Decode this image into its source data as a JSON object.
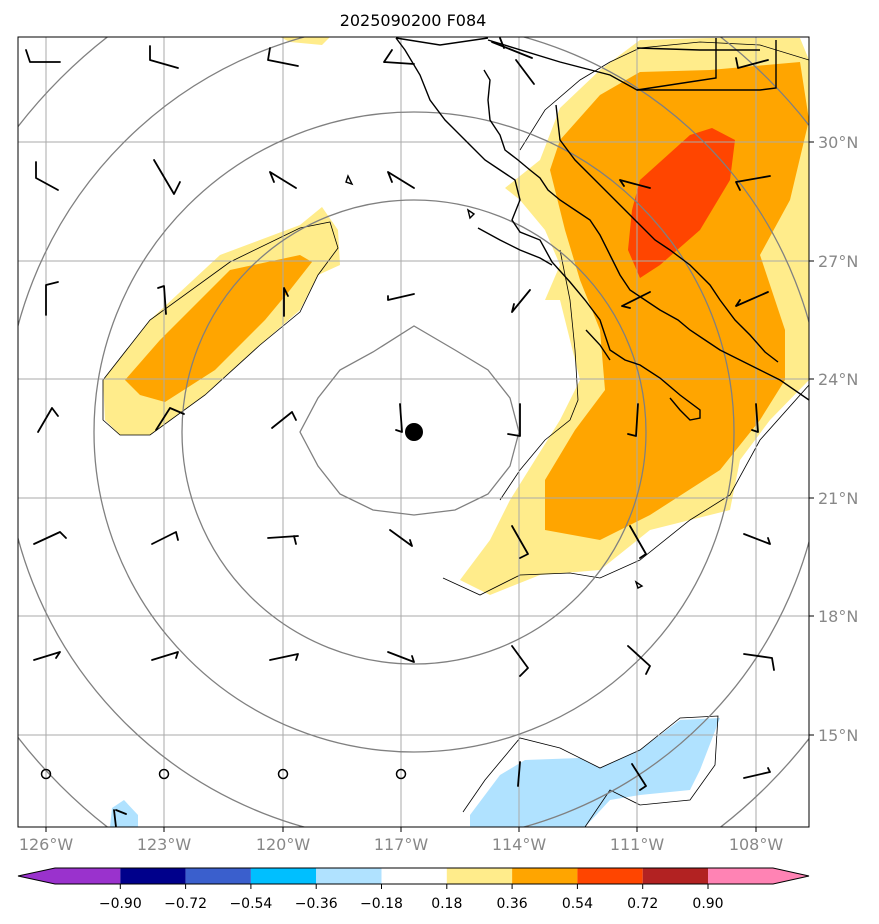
{
  "title": "2025090200 F084",
  "map": {
    "lon_ticks": [
      "126°W",
      "123°W",
      "120°W",
      "117°W",
      "114°W",
      "111°W",
      "108°W"
    ],
    "lat_ticks": [
      "30°N",
      "27°N",
      "24°N",
      "21°N",
      "18°N",
      "15°N"
    ],
    "center_marker": "storm-center-dot",
    "range_rings": 5
  },
  "colorbar": {
    "labels": [
      "−0.90",
      "−0.72",
      "−0.54",
      "−0.36",
      "−0.18",
      "0.18",
      "0.36",
      "0.54",
      "0.72",
      "0.90"
    ],
    "colors": [
      "#9a32cd",
      "#00008b",
      "#3a5fcd",
      "#00bfff",
      "#b0e2ff",
      "#ffffff",
      "#ffec8b",
      "#ffa500",
      "#ff4500",
      "#b22222",
      "#ff83b4"
    ]
  },
  "colors": {
    "light_yellow": "#ffec8b",
    "orange": "#ffa500",
    "red_orange": "#ff4500",
    "light_blue": "#b0e2ff",
    "grid": "#aaaaaa",
    "rings": "#808080"
  }
}
